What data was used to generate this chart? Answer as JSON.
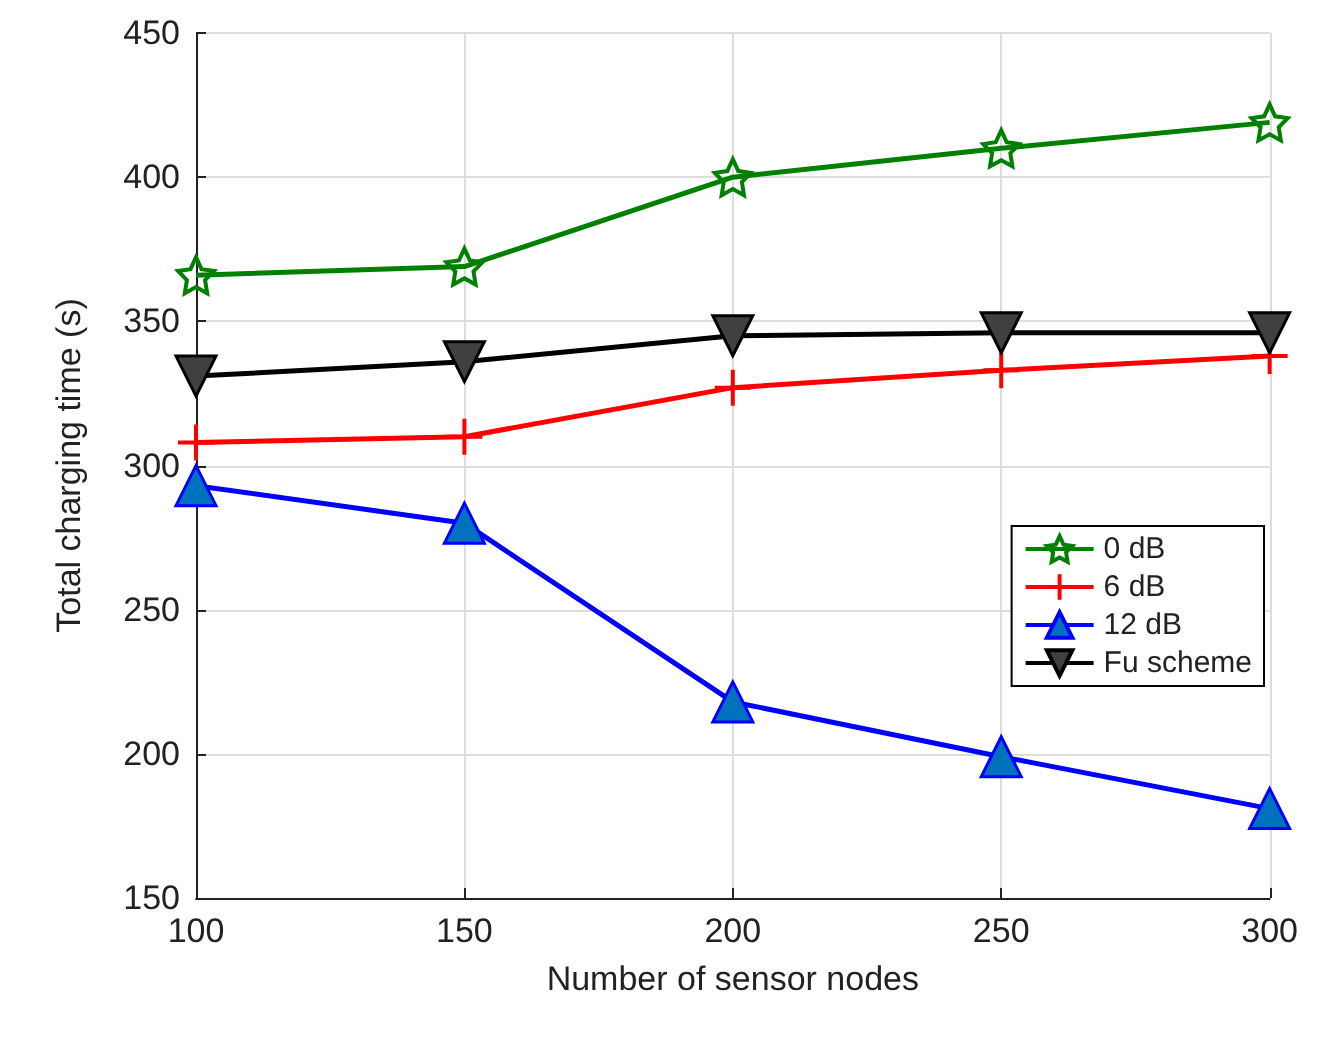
{
  "chart_data": {
    "type": "line",
    "xlabel": "Number of sensor nodes",
    "ylabel": "Total charging time (s)",
    "x": [
      100,
      150,
      200,
      250,
      300
    ],
    "xlim": [
      100,
      300
    ],
    "xticks": [
      100,
      150,
      200,
      250,
      300
    ],
    "ylim": [
      150,
      450
    ],
    "yticks": [
      150,
      200,
      250,
      300,
      350,
      400,
      450
    ],
    "grid": true,
    "legend": "right",
    "series": [
      {
        "name": "0 dB",
        "color": "#008000",
        "marker": "star",
        "values": [
          366,
          369,
          400,
          410,
          419
        ]
      },
      {
        "name": "6 dB",
        "color": "#ff0000",
        "marker": "cross",
        "values": [
          308,
          310,
          327,
          333,
          338
        ]
      },
      {
        "name": "12 dB",
        "color": "#0000ff",
        "marker": "triangle",
        "values": [
          293,
          280,
          218,
          199,
          181
        ]
      },
      {
        "name": "Fu scheme",
        "color": "#000000",
        "marker": "triangle-down",
        "values": [
          331,
          336,
          345,
          346,
          346
        ]
      }
    ]
  }
}
